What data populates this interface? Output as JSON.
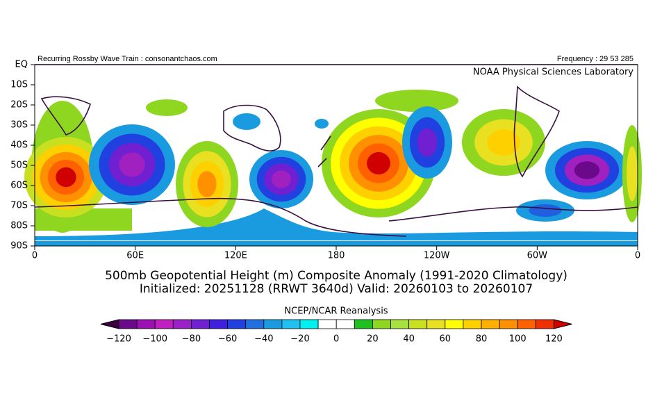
{
  "header": {
    "left": "Recurring Rossby Wave Train : consonantchaos.com",
    "right": "Frequency : 29 53 285",
    "org": "NOAA Physical Sciences Laboratory"
  },
  "map": {
    "lat_labels": [
      "EQ",
      "10S",
      "20S",
      "30S",
      "40S",
      "50S",
      "60S",
      "70S",
      "80S",
      "90S"
    ],
    "lon_labels": [
      "0",
      "60E",
      "120E",
      "180",
      "120W",
      "60W",
      "0"
    ]
  },
  "caption": {
    "line1": "500mb Geopotential Height (m) Composite Anomaly (1991-2020 Climatology)",
    "line2": "Initialized: 20251128 (RRWT 3640d) Valid: 20260103 to 20260107"
  },
  "colorbar": {
    "title": "NCEP/NCAR Reanalysis",
    "labels": [
      "−120",
      "−100",
      "−80",
      "−60",
      "−40",
      "−20",
      "0",
      "20",
      "40",
      "60",
      "80",
      "100",
      "120"
    ]
  }
}
